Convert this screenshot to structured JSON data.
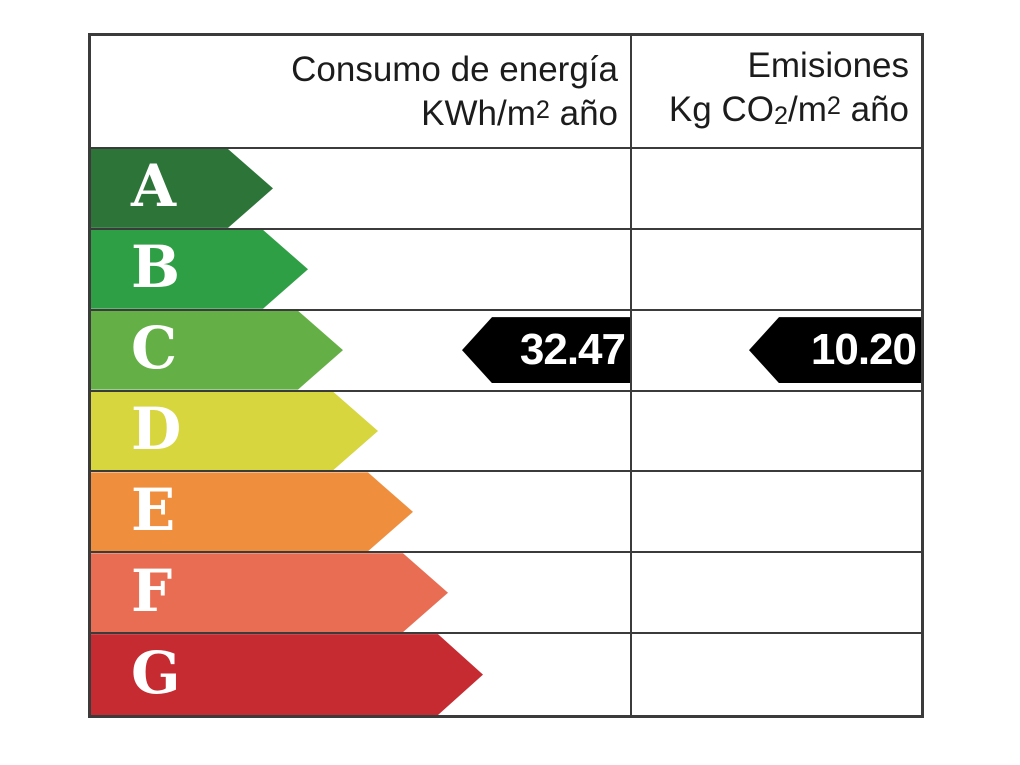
{
  "header": {
    "consumo": {
      "line1": "Consumo de energía",
      "line2_prefix": "KWh/m",
      "line2_sup": "2",
      "line2_suffix": " año"
    },
    "emisiones": {
      "line1": "Emisiones",
      "line2_prefix": "Kg CO",
      "line2_sub": "2",
      "line2_mid": "/m",
      "line2_sup": "2",
      "line2_suffix": " año"
    }
  },
  "rows": [
    {
      "letter": "A",
      "color": "#2d7439"
    },
    {
      "letter": "B",
      "color": "#2f9f45"
    },
    {
      "letter": "C",
      "color": "#65b046"
    },
    {
      "letter": "D",
      "color": "#d7d63e"
    },
    {
      "letter": "E",
      "color": "#ef8f3e"
    },
    {
      "letter": "F",
      "color": "#e96d52"
    },
    {
      "letter": "G",
      "color": "#c62b31"
    }
  ],
  "values": {
    "rated_letter": "C",
    "consumo": "32.47",
    "emisiones": "10.20",
    "arrow_color": "#000000",
    "value_text_color": "#ffffff"
  },
  "chart_data": {
    "type": "bar",
    "categories": [
      "A",
      "B",
      "C",
      "D",
      "E",
      "F",
      "G"
    ],
    "bar_colors": [
      "#2d7439",
      "#2f9f45",
      "#65b046",
      "#d7d63e",
      "#ef8f3e",
      "#e96d52",
      "#c62b31"
    ],
    "columns": [
      {
        "header": "Consumo de energía KWh/m2 año",
        "rating": "C",
        "value": 32.47
      },
      {
        "header": "Emisiones Kg CO2/m2 año",
        "rating": "C",
        "value": 10.2
      }
    ],
    "legend_position": "none",
    "grid": true
  }
}
